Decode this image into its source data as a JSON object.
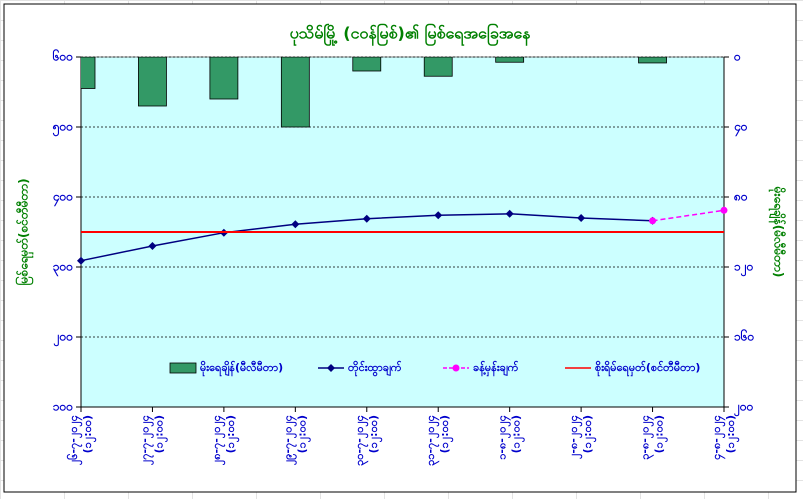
{
  "chart_data": {
    "type": "combo",
    "title": "ပုသိမ်မြို့ (ငဝန်မြစ်)၏ မြစ်ရေအခြေအနေ",
    "y_label": "မြစ်ရေမှတ်(စင်တီမီတာ)",
    "y2_label": "မိုးရေချိန်(မီလီမီတာ)",
    "categories": [
      "၂၆-၇-၂၀၂၄ (၁၂:၀၀)",
      "၂၇-၇-၂၀၂၄ (၁၂:၀၀)",
      "၂၈-၇-၂၀၂၄ (၁၂:၀၀)",
      "၂၉-၇-၂၀၂၄ (၁၂:၀၀)",
      "၃၀-၇-၂၀၂၄ (၁၂:၀၀)",
      "၃၁-၇-၂၀၂၄ (၁၂:၀၀)",
      "၁-၈-၂၀၂၄ (၁၂:၀၀)",
      "၂-၈-၂၀၂၄ (၁၂:၀၀)",
      "၃-၈-၂၀၂၄ (၁၂:၀၀)",
      "၄-၈-၂၀၂၄ (၁၂:၀၀)"
    ],
    "series": [
      {
        "name": "မိုးရေချိန်(မီလီမီတာ)",
        "type": "bar",
        "axis": "y2",
        "color": "#339966",
        "values": [
          18,
          28,
          24,
          40,
          8,
          11,
          3,
          0,
          3.4,
          0
        ]
      },
      {
        "name": "တိုင်းထွာချက်",
        "type": "line",
        "color": "#000080",
        "marker": "diamond",
        "values": [
          309,
          330,
          349,
          361,
          369,
          374,
          376,
          370,
          366,
          null
        ]
      },
      {
        "name": "ခန့်မှန်းချက်",
        "type": "line",
        "color": "#ff00ff",
        "marker": "circle",
        "dashed": true,
        "values": [
          null,
          null,
          null,
          null,
          null,
          null,
          null,
          null,
          366,
          381
        ]
      },
      {
        "name": "စိုးရိမ်ရေမှတ်(စင်တီမီတာ)",
        "type": "line",
        "color": "#ff0000",
        "values": [
          350,
          350,
          350,
          350,
          350,
          350,
          350,
          350,
          350,
          350
        ]
      }
    ],
    "ylim": [
      100,
      600
    ],
    "yticks": [
      {
        "value": 100,
        "label": "၁၀၀"
      },
      {
        "value": 200,
        "label": "၂၀၀"
      },
      {
        "value": 300,
        "label": "၃၀၀"
      },
      {
        "value": 400,
        "label": "၄၀၀"
      },
      {
        "value": 500,
        "label": "၅၀၀"
      },
      {
        "value": 600,
        "label": "၆၀၀"
      }
    ],
    "y2lim": [
      0,
      200
    ],
    "y2_reversed": true,
    "y2ticks": [
      {
        "value": 0,
        "label": "၀"
      },
      {
        "value": 40,
        "label": "၄၀"
      },
      {
        "value": 80,
        "label": "၈၀"
      },
      {
        "value": 120,
        "label": "၁၂၀"
      },
      {
        "value": 160,
        "label": "၁၆၀"
      },
      {
        "value": 200,
        "label": "၂၀၀"
      }
    ],
    "grid": true,
    "legend": "bottom",
    "plot_background": "#ccffff"
  }
}
